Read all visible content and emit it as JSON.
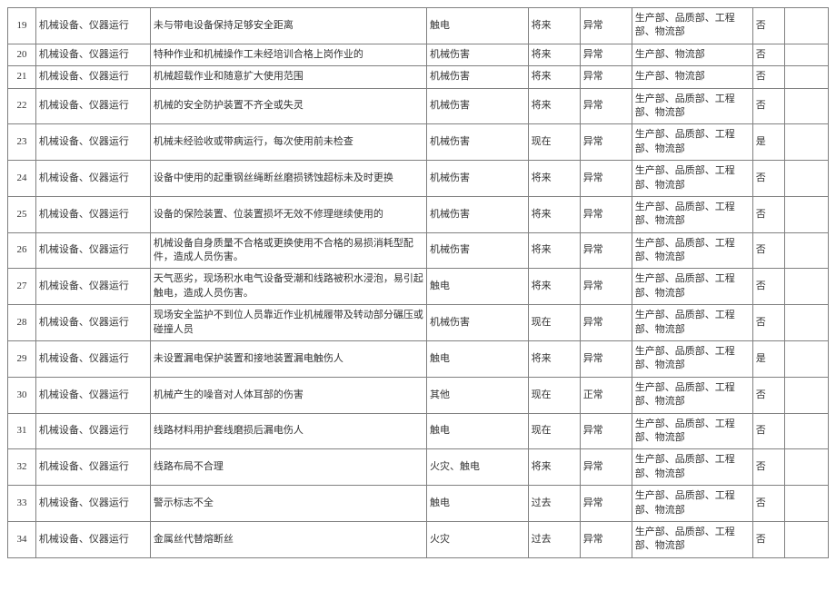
{
  "table": {
    "columns": [
      {
        "class": "col-num"
      },
      {
        "class": "col-cat"
      },
      {
        "class": "col-desc"
      },
      {
        "class": "col-harm"
      },
      {
        "class": "col-time"
      },
      {
        "class": "col-state"
      },
      {
        "class": "col-dept"
      },
      {
        "class": "col-flag"
      },
      {
        "class": "col-extra"
      }
    ],
    "rows": [
      {
        "num": "19",
        "cat": "机械设备、仪器运行",
        "desc": "未与带电设备保持足够安全距离",
        "harm": "触电",
        "time": "将来",
        "state": "异常",
        "dept": "生产部、品质部、工程部、物流部",
        "flag": "否",
        "extra": ""
      },
      {
        "num": "20",
        "cat": "机械设备、仪器运行",
        "desc": "特种作业和机械操作工未经培训合格上岗作业的",
        "harm": "机械伤害",
        "time": "将来",
        "state": "异常",
        "dept": "生产部、物流部",
        "flag": "否",
        "extra": ""
      },
      {
        "num": "21",
        "cat": "机械设备、仪器运行",
        "desc": "机械超载作业和随意扩大使用范围",
        "harm": "机械伤害",
        "time": "将来",
        "state": "异常",
        "dept": "生产部、物流部",
        "flag": "否",
        "extra": ""
      },
      {
        "num": "22",
        "cat": "机械设备、仪器运行",
        "desc": "机械的安全防护装置不齐全或失灵",
        "harm": "机械伤害",
        "time": "将来",
        "state": "异常",
        "dept": "生产部、品质部、工程部、物流部",
        "flag": "否",
        "extra": ""
      },
      {
        "num": "23",
        "cat": "机械设备、仪器运行",
        "desc": "机械未经验收或带病运行，每次使用前未检查",
        "harm": "机械伤害",
        "time": "现在",
        "state": "异常",
        "dept": "生产部、品质部、工程部、物流部",
        "flag": "是",
        "extra": ""
      },
      {
        "num": "24",
        "cat": "机械设备、仪器运行",
        "desc": "设备中使用的起重钢丝绳断丝磨损锈蚀超标未及时更换",
        "harm": "机械伤害",
        "time": "将来",
        "state": "异常",
        "dept": "生产部、品质部、工程部、物流部",
        "flag": "否",
        "extra": ""
      },
      {
        "num": "25",
        "cat": "机械设备、仪器运行",
        "desc": "设备的保险装置、位装置损坏无效不修理继续使用的",
        "harm": "机械伤害",
        "time": "将来",
        "state": "异常",
        "dept": "生产部、品质部、工程部、物流部",
        "flag": "否",
        "extra": ""
      },
      {
        "num": "26",
        "cat": "机械设备、仪器运行",
        "desc": "机械设备自身质量不合格或更换使用不合格的易损消耗型配件，造成人员伤害。",
        "harm": "机械伤害",
        "time": "将来",
        "state": "异常",
        "dept": "生产部、品质部、工程部、物流部",
        "flag": "否",
        "extra": ""
      },
      {
        "num": "27",
        "cat": "机械设备、仪器运行",
        "desc": "天气恶劣，现场积水电气设备受潮和线路被积水浸泡，易引起触电，造成人员伤害。",
        "harm": "触电",
        "time": "将来",
        "state": "异常",
        "dept": "生产部、品质部、工程部、物流部",
        "flag": "否",
        "extra": ""
      },
      {
        "num": "28",
        "cat": "机械设备、仪器运行",
        "desc": "现场安全监护不到位人员靠近作业机械履带及转动部分碾压或碰撞人员",
        "harm": "机械伤害",
        "time": "现在",
        "state": "异常",
        "dept": "生产部、品质部、工程部、物流部",
        "flag": "否",
        "extra": ""
      },
      {
        "num": "29",
        "cat": "机械设备、仪器运行",
        "desc": "未设置漏电保护装置和接地装置漏电触伤人",
        "harm": "触电",
        "time": "将来",
        "state": "异常",
        "dept": "生产部、品质部、工程部、物流部",
        "flag": "是",
        "extra": ""
      },
      {
        "num": "30",
        "cat": "机械设备、仪器运行",
        "desc": "机械产生的噪音对人体耳部的伤害",
        "harm": "其他",
        "time": "现在",
        "state": "正常",
        "dept": "生产部、品质部、工程部、物流部",
        "flag": "否",
        "extra": ""
      },
      {
        "num": "31",
        "cat": "机械设备、仪器运行",
        "desc": "线路材料用护套线磨损后漏电伤人",
        "harm": "触电",
        "time": "现在",
        "state": "异常",
        "dept": "生产部、品质部、工程部、物流部",
        "flag": "否",
        "extra": ""
      },
      {
        "num": "32",
        "cat": "机械设备、仪器运行",
        "desc": "线路布局不合理",
        "harm": "火灾、触电",
        "time": "将来",
        "state": "异常",
        "dept": "生产部、品质部、工程部、物流部",
        "flag": "否",
        "extra": ""
      },
      {
        "num": "33",
        "cat": "机械设备、仪器运行",
        "desc": "警示标志不全",
        "harm": "触电",
        "time": "过去",
        "state": "异常",
        "dept": "生产部、品质部、工程部、物流部",
        "flag": "否",
        "extra": ""
      },
      {
        "num": "34",
        "cat": "机械设备、仪器运行",
        "desc": "金属丝代替熔断丝",
        "harm": "火灾",
        "time": "过去",
        "state": "异常",
        "dept": "生产部、品质部、工程部、物流部",
        "flag": "否",
        "extra": ""
      }
    ]
  },
  "style": {
    "border_color": "#808080",
    "text_color": "#333333",
    "background_color": "#ffffff",
    "font_family": "SimSun",
    "font_size": 11
  }
}
